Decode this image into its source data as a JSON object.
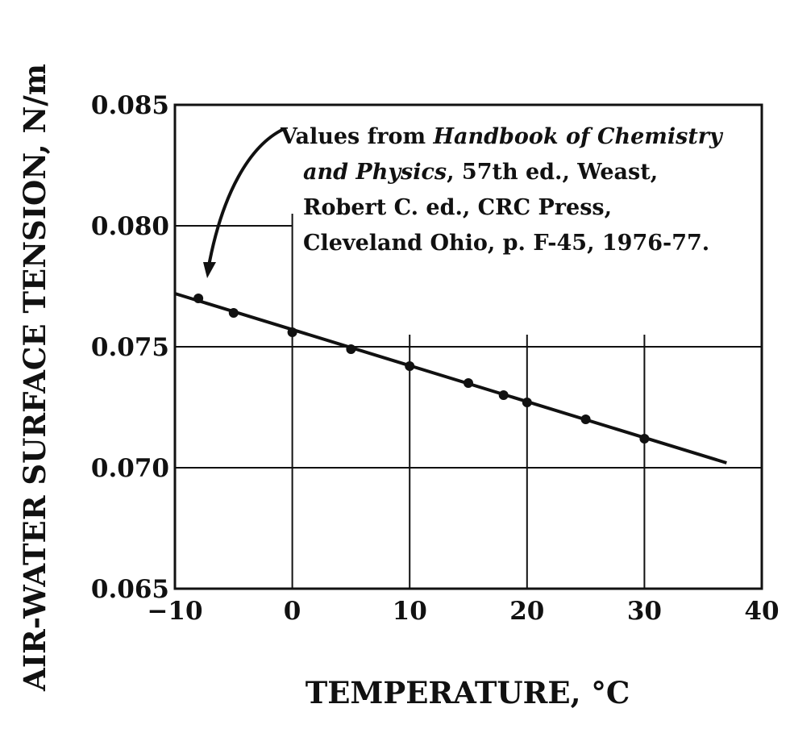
{
  "chart_data": {
    "type": "scatter",
    "xlabel": "TEMPERATURE, °C",
    "ylabel": "AIR-WATER SURFACE TENSION, N/m",
    "xlim": [
      -10,
      40
    ],
    "ylim": [
      0.065,
      0.085
    ],
    "x_ticks": [
      "−10",
      "0",
      "10",
      "20",
      "30",
      "40"
    ],
    "y_ticks": [
      "0.065",
      "0.070",
      "0.075",
      "0.080",
      "0.085"
    ],
    "grid": true,
    "series": [
      {
        "points": [
          [
            -8,
            0.077
          ],
          [
            -5,
            0.0764
          ],
          [
            0,
            0.0756
          ],
          [
            5,
            0.0749
          ],
          [
            10,
            0.0742
          ],
          [
            15,
            0.0735
          ],
          [
            18,
            0.073
          ],
          [
            20,
            0.0727
          ],
          [
            25,
            0.072
          ],
          [
            30,
            0.0712
          ]
        ],
        "fit_line": [
          [
            -10,
            0.0772
          ],
          [
            37,
            0.0702
          ]
        ]
      }
    ],
    "annotation": {
      "line1_prefix": "Values from ",
      "line1_italic": "Handbook of Chemistry",
      "line2_italic": "and Physics",
      "line2_rest": ", 57th ed., Weast,",
      "line3": "Robert C. ed., CRC Press,",
      "line4": "Cleveland Ohio, p. F-45, 1976-77."
    }
  }
}
